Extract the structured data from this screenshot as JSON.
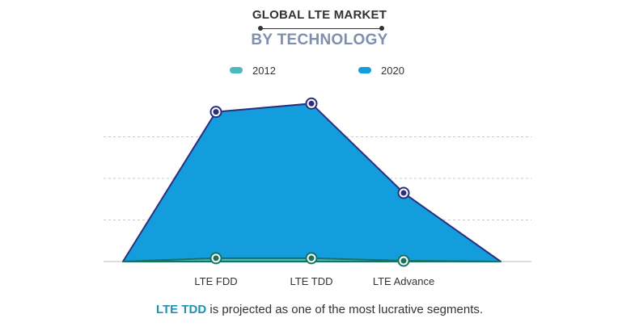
{
  "chart_data": {
    "type": "area",
    "title": "GLOBAL LTE MARKET",
    "subtitle": "BY TECHNOLOGY",
    "categories": [
      "LTE FDD",
      "LTE TDD",
      "LTE Advance"
    ],
    "series": [
      {
        "name": "2012",
        "values": [
          0.08,
          0.08,
          0.02
        ],
        "color": "#4bb8c2",
        "line_color": "#17735f"
      },
      {
        "name": "2020",
        "values": [
          3.6,
          3.8,
          1.65
        ],
        "color": "#149ddc",
        "line_color": "#2b2f7e"
      }
    ],
    "ylim": [
      0,
      4
    ],
    "grid": true,
    "legend_position": "top"
  },
  "caption": {
    "highlight": "LTE TDD",
    "text": " is projected as one of the most lucrative segments."
  }
}
